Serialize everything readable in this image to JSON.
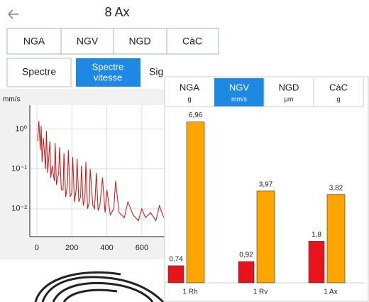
{
  "header": {
    "title": "8 Ax"
  },
  "tabs": [
    "NGA",
    "NGV",
    "NGD",
    "CàC"
  ],
  "subtabs": [
    "Spectre",
    [
      "Spectre",
      "vitesse"
    ],
    "Sig"
  ],
  "card_tabs": [
    {
      "label": "NGA",
      "unit": "g"
    },
    {
      "label": "NGV",
      "unit": "mm/s"
    },
    {
      "label": "NGD",
      "unit": "µm"
    },
    {
      "label": "CàC",
      "unit": "g"
    }
  ],
  "chart_data": [
    {
      "type": "line",
      "ylabel": "mm/s",
      "log_scale": true,
      "grid": true,
      "color": "#d01010",
      "xlim": [
        -40,
        730
      ],
      "xticks": [
        0,
        200,
        400,
        600
      ],
      "ylim": [
        0.002,
        4
      ],
      "yticks": [
        {
          "value": 1,
          "label": "10⁰"
        },
        {
          "value": 0.1,
          "label": "10⁻¹"
        },
        {
          "value": 0.01,
          "label": "10⁻²"
        }
      ],
      "x": [
        5,
        12,
        20,
        25,
        30,
        38,
        50,
        55,
        62,
        75,
        80,
        88,
        100,
        105,
        112,
        125,
        130,
        140,
        150,
        155,
        165,
        175,
        180,
        190,
        200,
        205,
        215,
        225,
        230,
        240,
        250,
        255,
        265,
        275,
        280,
        290,
        300,
        305,
        320,
        330,
        340,
        350,
        360,
        375,
        390,
        400,
        420,
        440,
        450,
        470,
        500,
        520,
        550,
        580,
        600,
        620,
        650,
        680,
        700,
        725
      ],
      "values": [
        0.5,
        1.6,
        0.3,
        1.2,
        0.15,
        0.6,
        0.1,
        0.9,
        0.08,
        0.5,
        0.06,
        0.12,
        0.05,
        0.45,
        0.04,
        0.08,
        0.35,
        0.03,
        0.03,
        0.25,
        0.02,
        0.04,
        0.3,
        0.02,
        0.025,
        0.2,
        0.015,
        0.03,
        0.18,
        0.015,
        0.02,
        0.12,
        0.012,
        0.02,
        0.15,
        0.01,
        0.015,
        0.1,
        0.012,
        0.01,
        0.08,
        0.009,
        0.012,
        0.06,
        0.008,
        0.03,
        0.007,
        0.01,
        0.05,
        0.008,
        0.006,
        0.015,
        0.007,
        0.005,
        0.01,
        0.006,
        0.008,
        0.005,
        0.012,
        0.006
      ]
    },
    {
      "type": "bar",
      "categories": [
        "1 Rh",
        "1 Rv",
        "1 Ax"
      ],
      "ylim": [
        0,
        7.5
      ],
      "series": [
        {
          "color": "#e8141b",
          "values": [
            0.74,
            0.92,
            1.8
          ],
          "value_labels": [
            "0,74",
            "0,92",
            "1,8"
          ]
        },
        {
          "color": "#ffa500",
          "values": [
            6.96,
            3.97,
            3.82
          ],
          "value_labels": [
            "6,96",
            "3,97",
            "3,82"
          ]
        }
      ]
    }
  ]
}
